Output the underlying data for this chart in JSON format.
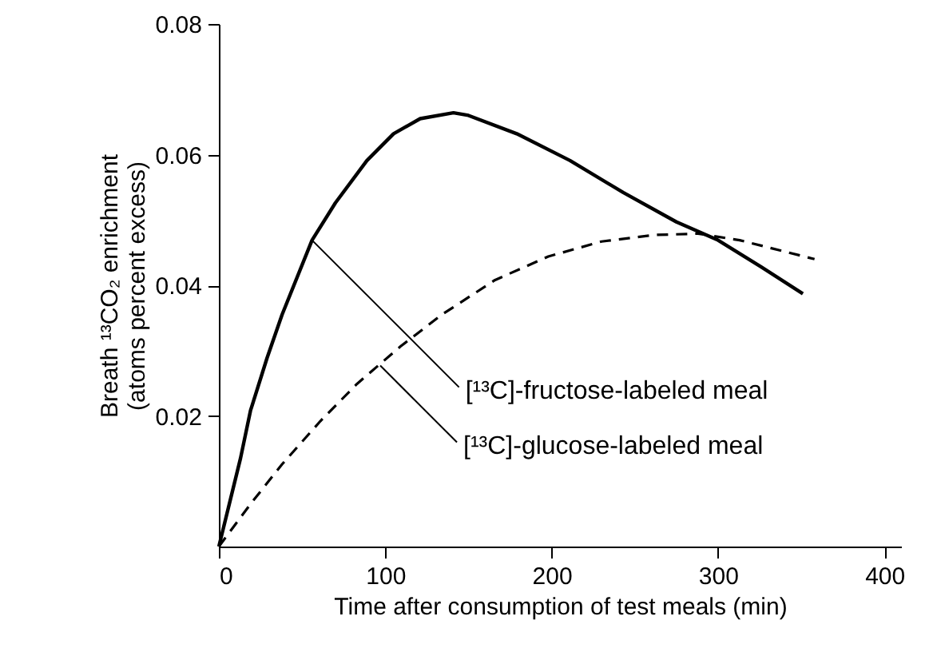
{
  "chart_data": {
    "type": "line",
    "xlabel": "Time after consumption of test meals (min)",
    "ylabel": "Breath ¹³CO₂ enrichment\n(atoms percent excess)",
    "xlim": [
      0,
      410
    ],
    "xticks": [
      0,
      100,
      200,
      300,
      400
    ],
    "ylim": [
      0,
      0.08
    ],
    "yticks": [
      0.02,
      0.04,
      0.06,
      0.08
    ],
    "grid": false,
    "marker": "none",
    "series": [
      {
        "color": "#000000",
        "line_style": "solid",
        "x": [
          0,
          13,
          19,
          29,
          38,
          56,
          70,
          89,
          105,
          121,
          141,
          150,
          179,
          211,
          243,
          275,
          300,
          326,
          351
        ],
        "values": [
          0,
          0.0135,
          0.0208,
          0.0289,
          0.0355,
          0.0469,
          0.0526,
          0.0591,
          0.0632,
          0.0655,
          0.0664,
          0.066,
          0.0632,
          0.0591,
          0.0542,
          0.0497,
          0.0469,
          0.0428,
          0.0387
        ]
      },
      {
        "color": "#000000",
        "line_style": "dashed",
        "x": [
          0,
          19,
          38,
          61,
          83,
          109,
          134,
          166,
          198,
          230,
          262,
          288,
          313,
          358
        ],
        "values": [
          0,
          0.0065,
          0.0126,
          0.0192,
          0.0249,
          0.0306,
          0.0355,
          0.0408,
          0.0444,
          0.0467,
          0.0477,
          0.0479,
          0.0469,
          0.044
        ]
      }
    ],
    "annotations": [
      {
        "text": "[¹³C]-fructose-labeled meal",
        "x": 56,
        "y": 0.0469
      },
      {
        "text": "[¹³C]-glucose-labeled meal",
        "x": 97,
        "y": 0.0277
      }
    ]
  }
}
